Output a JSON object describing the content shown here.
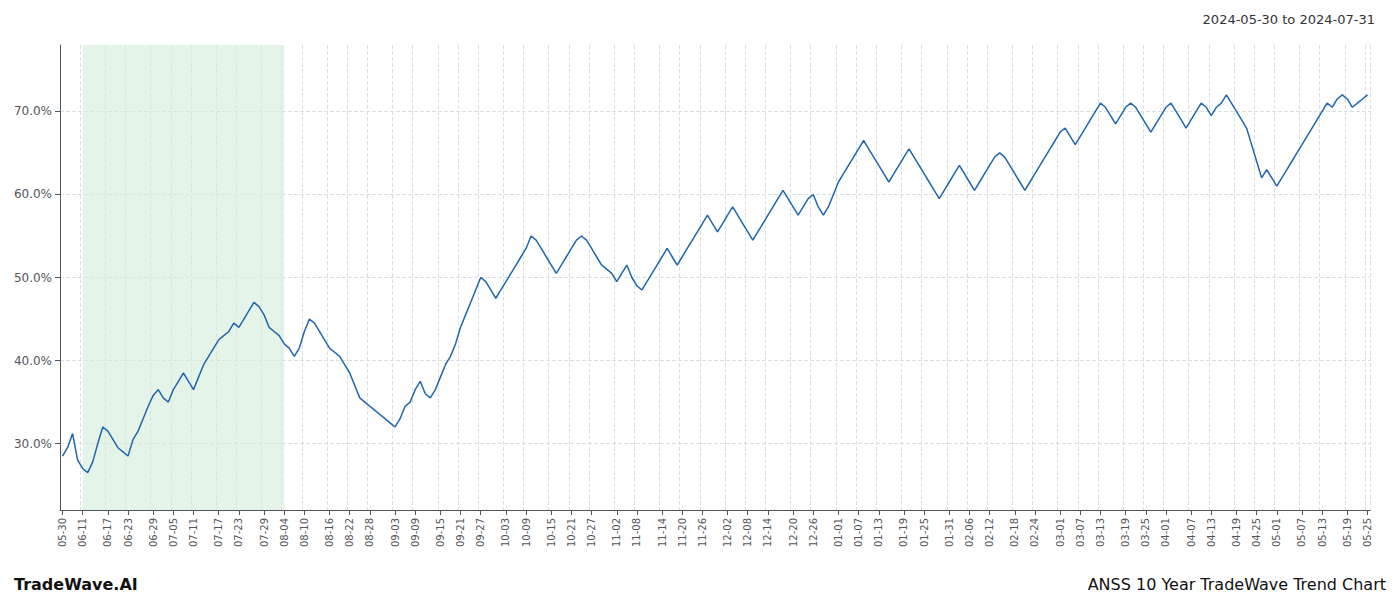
{
  "chart_data": {
    "type": "line",
    "title": "2024-05-30 to 2024-07-31",
    "annotations": [
      "TradeWave.AI",
      "ANSS 10 Year TradeWave Trend Chart"
    ],
    "color": "#2166ac",
    "grid": true,
    "ylim": [
      22,
      78
    ],
    "yticks": [
      {
        "value": 30,
        "label": "30.0%"
      },
      {
        "value": 40,
        "label": "40.0%"
      },
      {
        "value": 50,
        "label": "50.0%"
      },
      {
        "value": 60,
        "label": "60.0%"
      },
      {
        "value": 70,
        "label": "70.0%"
      }
    ],
    "shaded_region": {
      "start": "06-11",
      "end": "08-04",
      "color": "#d4edda"
    },
    "categories": [
      "05-30",
      null,
      null,
      null,
      "06-11",
      null,
      null,
      null,
      null,
      "06-17",
      null,
      null,
      null,
      "06-23",
      null,
      null,
      null,
      null,
      "06-29",
      null,
      null,
      null,
      "07-05",
      null,
      null,
      null,
      "07-11",
      null,
      null,
      null,
      null,
      "07-17",
      null,
      null,
      null,
      "07-23",
      null,
      null,
      null,
      null,
      "07-29",
      null,
      null,
      null,
      "08-04",
      null,
      null,
      null,
      "08-10",
      null,
      null,
      null,
      null,
      "08-16",
      null,
      null,
      null,
      "08-22",
      null,
      null,
      null,
      "08-28",
      null,
      null,
      null,
      null,
      "09-03",
      null,
      null,
      null,
      "09-09",
      null,
      null,
      null,
      null,
      "09-15",
      null,
      null,
      null,
      "09-21",
      null,
      null,
      null,
      "09-27",
      null,
      null,
      null,
      null,
      "10-03",
      null,
      null,
      null,
      "10-09",
      null,
      null,
      null,
      null,
      "10-15",
      null,
      null,
      null,
      "10-21",
      null,
      null,
      null,
      "10-27",
      null,
      null,
      null,
      null,
      "11-02",
      null,
      null,
      null,
      "11-08",
      null,
      null,
      null,
      null,
      "11-14",
      null,
      null,
      null,
      "11-20",
      null,
      null,
      null,
      "11-26",
      null,
      null,
      null,
      null,
      "12-02",
      null,
      null,
      null,
      "12-08",
      null,
      null,
      null,
      "12-14",
      null,
      null,
      null,
      null,
      "12-20",
      null,
      null,
      null,
      "12-26",
      null,
      null,
      null,
      null,
      "01-01",
      null,
      null,
      null,
      "01-07",
      null,
      null,
      null,
      "01-13",
      null,
      null,
      null,
      null,
      "01-19",
      null,
      null,
      null,
      "01-25",
      null,
      null,
      null,
      null,
      "01-31",
      null,
      null,
      null,
      "02-06",
      null,
      null,
      null,
      "02-12",
      null,
      null,
      null,
      null,
      "02-18",
      null,
      null,
      null,
      "02-24",
      null,
      null,
      null,
      null,
      "03-01",
      null,
      null,
      null,
      "03-07",
      null,
      null,
      null,
      "03-13",
      null,
      null,
      null,
      null,
      "03-19",
      null,
      null,
      null,
      "03-25",
      null,
      null,
      null,
      "04-01",
      null,
      null,
      null,
      null,
      "04-07",
      null,
      null,
      null,
      "04-13",
      null,
      null,
      null,
      null,
      "04-19",
      null,
      null,
      null,
      "04-25",
      null,
      null,
      null,
      "05-01",
      null,
      null,
      null,
      null,
      "05-07",
      null,
      null,
      null,
      "05-13",
      null,
      null,
      null,
      null,
      "05-19",
      null,
      null,
      null,
      "05-25"
    ],
    "values": [
      28.5,
      29.5,
      31.2,
      28.0,
      27.0,
      26.5,
      27.8,
      30.0,
      32.0,
      31.5,
      30.5,
      29.5,
      29.0,
      28.5,
      30.5,
      31.5,
      33.0,
      34.5,
      35.8,
      36.5,
      35.5,
      35.0,
      36.5,
      37.5,
      38.5,
      37.5,
      36.5,
      38.0,
      39.5,
      40.5,
      41.5,
      42.5,
      43.0,
      43.5,
      44.5,
      44.0,
      45.0,
      46.0,
      47.0,
      46.5,
      45.5,
      44.0,
      43.5,
      43.0,
      42.0,
      41.5,
      40.5,
      41.5,
      43.5,
      45.0,
      44.5,
      43.5,
      42.5,
      41.5,
      41.0,
      40.5,
      39.5,
      38.5,
      37.0,
      35.5,
      35.0,
      34.5,
      34.0,
      33.5,
      33.0,
      32.5,
      32.0,
      33.0,
      34.5,
      35.0,
      36.5,
      37.5,
      36.0,
      35.5,
      36.5,
      38.0,
      39.5,
      40.5,
      42.0,
      44.0,
      45.5,
      47.0,
      48.5,
      50.0,
      49.5,
      48.5,
      47.5,
      48.5,
      49.5,
      50.5,
      51.5,
      52.5,
      53.5,
      55.0,
      54.5,
      53.5,
      52.5,
      51.5,
      50.5,
      51.5,
      52.5,
      53.5,
      54.5,
      55.0,
      54.5,
      53.5,
      52.5,
      51.5,
      51.0,
      50.5,
      49.5,
      50.5,
      51.5,
      50.0,
      49.0,
      48.5,
      49.5,
      50.5,
      51.5,
      52.5,
      53.5,
      52.5,
      51.5,
      52.5,
      53.5,
      54.5,
      55.5,
      56.5,
      57.5,
      56.5,
      55.5,
      56.5,
      57.5,
      58.5,
      57.5,
      56.5,
      55.5,
      54.5,
      55.5,
      56.5,
      57.5,
      58.5,
      59.5,
      60.5,
      59.5,
      58.5,
      57.5,
      58.5,
      59.5,
      60.0,
      58.5,
      57.5,
      58.5,
      60.0,
      61.5,
      62.5,
      63.5,
      64.5,
      65.5,
      66.5,
      65.5,
      64.5,
      63.5,
      62.5,
      61.5,
      62.5,
      63.5,
      64.5,
      65.5,
      64.5,
      63.5,
      62.5,
      61.5,
      60.5,
      59.5,
      60.5,
      61.5,
      62.5,
      63.5,
      62.5,
      61.5,
      60.5,
      61.5,
      62.5,
      63.5,
      64.5,
      65.0,
      64.5,
      63.5,
      62.5,
      61.5,
      60.5,
      61.5,
      62.5,
      63.5,
      64.5,
      65.5,
      66.5,
      67.5,
      68.0,
      67.0,
      66.0,
      67.0,
      68.0,
      69.0,
      70.0,
      71.0,
      70.5,
      69.5,
      68.5,
      69.5,
      70.5,
      71.0,
      70.5,
      69.5,
      68.5,
      67.5,
      68.5,
      69.5,
      70.5,
      71.0,
      70.0,
      69.0,
      68.0,
      69.0,
      70.0,
      71.0,
      70.5,
      69.5,
      70.5,
      71.0,
      72.0,
      71.0,
      70.0,
      69.0,
      68.0,
      66.0,
      64.0,
      62.0,
      63.0,
      62.0,
      61.0,
      62.0,
      63.0,
      64.0,
      65.0,
      66.0,
      67.0,
      68.0,
      69.0,
      70.0,
      71.0,
      70.5,
      71.5,
      72.0,
      71.5,
      70.5,
      71.0,
      71.5,
      72.0
    ]
  }
}
